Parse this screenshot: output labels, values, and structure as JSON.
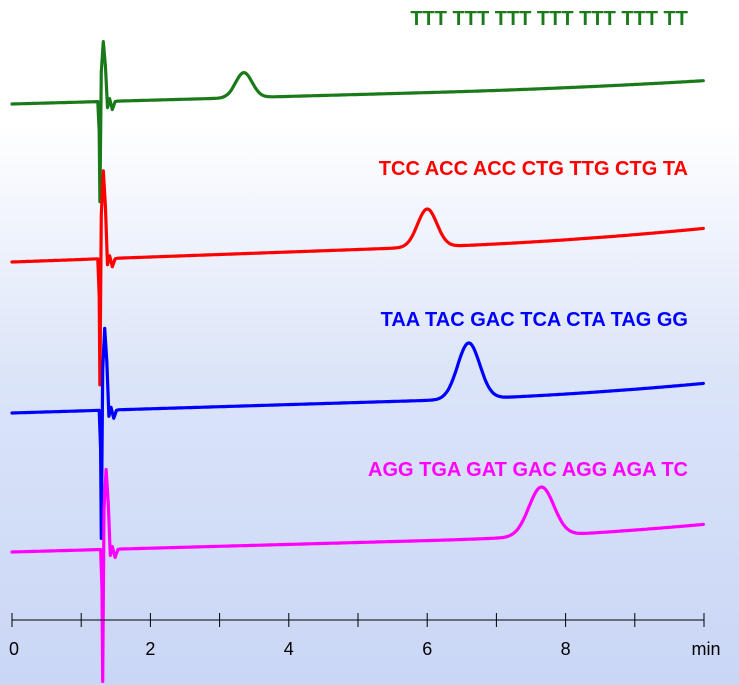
{
  "chart_data": {
    "type": "line",
    "title": "",
    "xlabel": "min",
    "ylabel": "",
    "xlim": [
      0,
      10
    ],
    "x_ticks": [
      0,
      2,
      4,
      6,
      8
    ],
    "grid": false,
    "series": [
      {
        "name": "TTT TTT TTT TTT TTT TTT TT",
        "color": "#1a7a1a",
        "peak_x": 3.35,
        "peak_height": 0.55
      },
      {
        "name": "TCC ACC ACC CTG TTG CTG TA",
        "color": "#ff0000",
        "peak_x": 6.0,
        "peak_height": 0.75
      },
      {
        "name": "TAA TAC GAC TCA CTA TAG GG",
        "color": "#0000ff",
        "peak_x": 6.6,
        "peak_height": 0.95
      },
      {
        "name": "AGG TGA GAT GAC AGG AGA TC",
        "color": "#ff00ff",
        "peak_x": 7.65,
        "peak_height": 1.0
      }
    ]
  }
}
